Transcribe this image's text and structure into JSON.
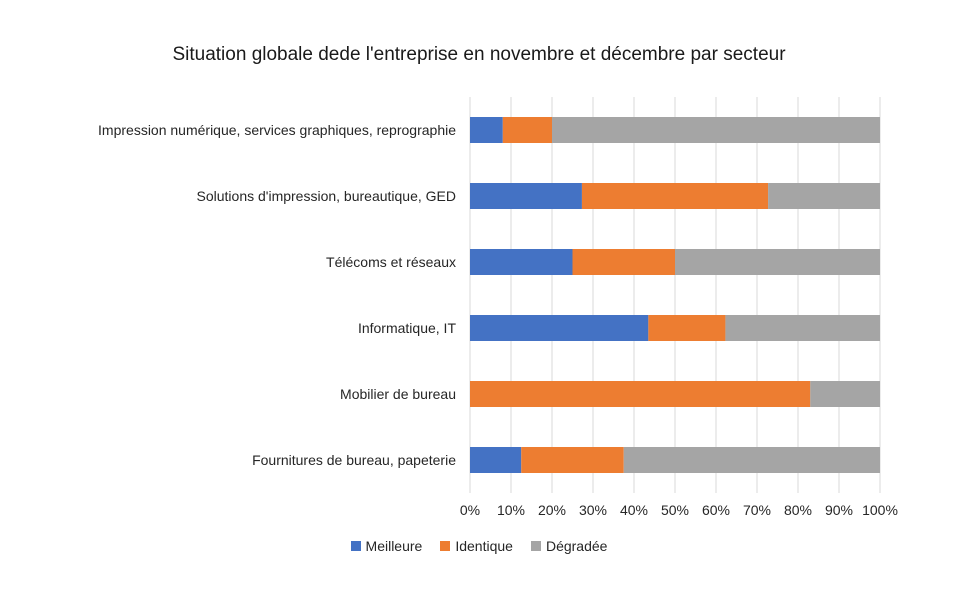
{
  "chart_data": {
    "type": "bar",
    "orientation": "horizontal",
    "stacked": "percent",
    "title": "Situation globale dede l'entreprise en novembre et décembre par secteur",
    "categories": [
      "Impression numérique, services graphiques, reprographie",
      "Solutions d'impression, bureautique, GED",
      "Télécoms et réseaux",
      "Informatique, IT",
      "Mobilier de bureau",
      "Fournitures de bureau, papeterie"
    ],
    "series": [
      {
        "name": "Meilleure",
        "color": "#4472c4",
        "values": [
          8,
          27.3,
          25,
          43.5,
          0,
          12.5
        ]
      },
      {
        "name": "Identique",
        "color": "#ed7d31",
        "values": [
          12,
          45.4,
          25,
          18.8,
          83,
          25
        ]
      },
      {
        "name": "Dégradée",
        "color": "#a5a5a5",
        "values": [
          80,
          27.3,
          50,
          37.7,
          17,
          62.5
        ]
      }
    ],
    "x_ticks": [
      "0%",
      "10%",
      "20%",
      "30%",
      "40%",
      "50%",
      "60%",
      "70%",
      "80%",
      "90%",
      "100%"
    ],
    "xlim": [
      0,
      100
    ],
    "grid": true,
    "legend_position": "bottom"
  }
}
